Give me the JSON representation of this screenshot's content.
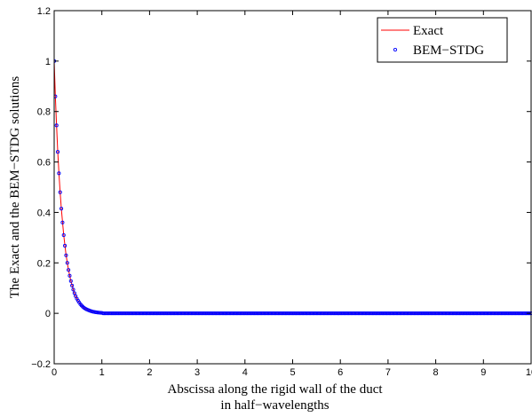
{
  "chart_data": {
    "type": "line",
    "xlabel_lines": [
      "Abscissa along the rigid wall of the duct",
      "in half−wavelengths"
    ],
    "ylabel": "The Exact and the BEM−STDG solutions",
    "xlim": [
      0,
      10
    ],
    "ylim": [
      -0.2,
      1.2
    ],
    "xticks": [
      0,
      1,
      2,
      3,
      4,
      5,
      6,
      7,
      8,
      9,
      10
    ],
    "yticks": [
      -0.2,
      0,
      0.2,
      0.4,
      0.6,
      0.8,
      1,
      1.2
    ],
    "xtick_labels": [
      "0",
      "1",
      "2",
      "3",
      "4",
      "5",
      "6",
      "7",
      "8",
      "9",
      "10"
    ],
    "ytick_labels": [
      "−0.2",
      "0",
      "0.2",
      "0.4",
      "0.6",
      "0.8",
      "1",
      "1.2"
    ],
    "grid": false,
    "legend_position": "top-right",
    "series": [
      {
        "name": "Exact",
        "style": "line",
        "color": "#ff0000",
        "x": [
          0,
          0.025,
          0.05,
          0.075,
          0.1,
          0.125,
          0.15,
          0.2,
          0.25,
          0.3,
          0.35,
          0.4,
          0.45,
          0.5,
          0.55,
          0.6,
          0.65,
          0.7,
          0.75,
          0.8,
          0.85,
          0.9,
          0.95,
          1.0,
          1.1,
          1.2,
          1.3,
          1.4,
          1.5,
          1.7,
          2.0,
          3,
          4,
          5,
          6,
          7,
          8,
          9,
          10
        ],
        "y": [
          1.0,
          0.86,
          0.745,
          0.64,
          0.555,
          0.48,
          0.415,
          0.31,
          0.23,
          0.172,
          0.128,
          0.094,
          0.068,
          0.05,
          0.036,
          0.026,
          0.019,
          0.014,
          0.01,
          0.007,
          0.005,
          0.0035,
          0.0025,
          0.0018,
          0.001,
          0.0005,
          0.0003,
          0.0002,
          0.0001,
          0.0,
          0.0,
          0.0,
          0.0,
          0.0,
          0.0,
          0.0,
          0.0,
          0.0,
          0.0
        ]
      },
      {
        "name": "BEM−STDG",
        "style": "markers",
        "color": "#0000ff",
        "x": [
          0,
          0.025,
          0.05,
          0.075,
          0.1,
          0.125,
          0.15,
          0.175,
          0.2,
          0.225,
          0.25,
          0.275,
          0.3,
          0.325,
          0.35,
          0.375,
          0.4,
          0.425,
          0.45,
          0.475,
          0.5,
          0.525,
          0.55,
          0.575,
          0.6,
          0.625,
          0.65,
          0.675,
          0.7,
          0.725,
          0.75,
          0.775,
          0.8,
          0.825,
          0.85,
          0.875,
          0.9,
          0.925,
          0.95,
          0.975,
          1.0
        ],
        "y": [
          1.0,
          0.86,
          0.745,
          0.64,
          0.555,
          0.48,
          0.415,
          0.36,
          0.31,
          0.268,
          0.23,
          0.2,
          0.172,
          0.149,
          0.128,
          0.11,
          0.094,
          0.08,
          0.068,
          0.058,
          0.05,
          0.043,
          0.036,
          0.031,
          0.026,
          0.022,
          0.019,
          0.016,
          0.014,
          0.012,
          0.01,
          0.0085,
          0.007,
          0.006,
          0.005,
          0.0042,
          0.0035,
          0.003,
          0.0025,
          0.002,
          0.0018
        ],
        "tail_x_range": [
          1.0,
          10.0
        ],
        "tail_y": 0.0
      }
    ],
    "legend": [
      "Exact",
      "BEM−STDG"
    ]
  }
}
